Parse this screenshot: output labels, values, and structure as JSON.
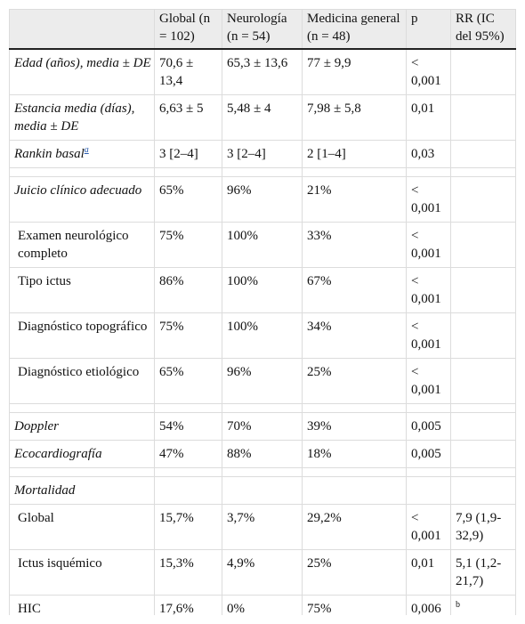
{
  "table": {
    "header": [
      "Global (n = 102)",
      "Neurología (n = 54)",
      "Medicina general (n = 48)",
      "p",
      "RR (IC del 95%)"
    ],
    "sections": [
      {
        "rows": [
          {
            "label": "Edad (años), media ± DE",
            "cells": [
              "70,6 ± 13,4",
              "65,3 ± 13,6",
              "77 ± 9,9",
              "< 0,001"
            ]
          },
          {
            "label": "Estancia media (días), media ± DE",
            "cells": [
              "6,63 ± 5",
              "5,48 ± 4",
              "7,98 ± 5,8",
              "0,01"
            ]
          },
          {
            "label": "Rankin basal",
            "note": "a",
            "cells": [
              "3 [2–4]",
              "3 [2–4]",
              "2 [1–4]",
              "0,03"
            ]
          }
        ]
      },
      {
        "rows": [
          {
            "label": "Juicio clínico adecuado",
            "cells": [
              "65%",
              "96%",
              "21%",
              "< 0,001"
            ]
          },
          {
            "label": "Examen neurológico completo",
            "cells": [
              "75%",
              "100%",
              "33%",
              "< 0,001"
            ]
          },
          {
            "label": "Tipo ictus",
            "cells": [
              "86%",
              "100%",
              "67%",
              "< 0,001"
            ]
          },
          {
            "label": "Diagnóstico topográfico",
            "cells": [
              "75%",
              "100%",
              "34%",
              "< 0,001"
            ]
          },
          {
            "label": "Diagnóstico etiológico",
            "cells": [
              "65%",
              "96%",
              "25%",
              "< 0,001"
            ]
          }
        ]
      },
      {
        "rows": [
          {
            "label": "Doppler",
            "cells": [
              "54%",
              "70%",
              "39%",
              "0,005"
            ]
          },
          {
            "label": "Ecocardiografía",
            "cells": [
              "47%",
              "88%",
              "18%",
              "0,005"
            ]
          }
        ]
      },
      {
        "rows": [
          {
            "label": "Mortalidad",
            "cells": []
          },
          {
            "label": "Global",
            "cells": [
              "15,7%",
              "3,7%",
              "29,2%",
              "< 0,001",
              "7,9 (1,9-32,9)"
            ]
          },
          {
            "label": "Ictus isquémico",
            "cells": [
              "15,3%",
              "4,9%",
              "25%",
              "0,01",
              "5,1 (1,2-21,7)"
            ]
          },
          {
            "label": "HIC",
            "cells": [
              "17,6%",
              "0%",
              "75%",
              "0,006"
            ],
            "rr_note": "b"
          }
        ]
      }
    ]
  }
}
